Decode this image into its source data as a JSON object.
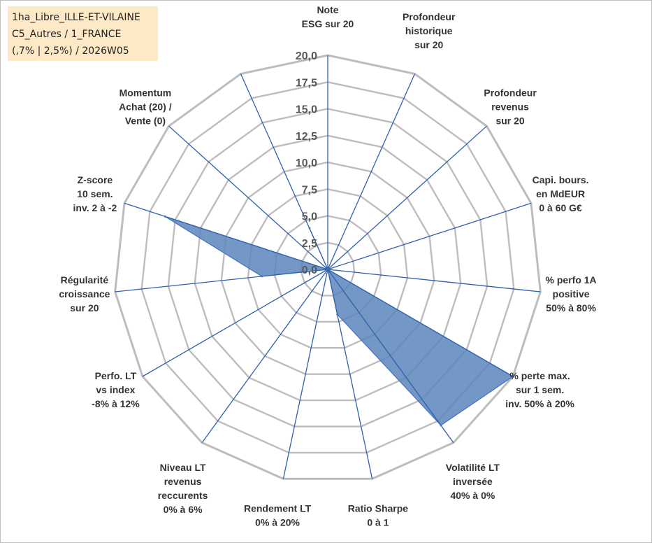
{
  "info": {
    "line1": "1ha_Libre_ILLE-ET-VILAINE",
    "line2": "C5_Autres / 1_FRANCE",
    "line3": "(,7% | 2,5%) / 2026W05"
  },
  "chart_data": {
    "type": "radar",
    "title": "",
    "rlim": [
      0,
      20
    ],
    "ticks": [
      "0,0",
      "2,5",
      "5,0",
      "7,5",
      "10,0",
      "12,5",
      "15,0",
      "17,5",
      "20,0"
    ],
    "tick_values": [
      0,
      2.5,
      5,
      7.5,
      10,
      12.5,
      15,
      17.5,
      20
    ],
    "colors": {
      "fill": "#5b86bb",
      "stroke": "#4472c4",
      "grid": "#bdbdbd",
      "spoke": "#2f5fae"
    },
    "axes": [
      {
        "label": [
          "Note",
          "ESG sur 20"
        ],
        "value": 0
      },
      {
        "label": [
          "Profondeur",
          "historique",
          "sur 20"
        ],
        "value": 0
      },
      {
        "label": [
          "Profondeur",
          "revenus",
          "sur 20"
        ],
        "value": 0
      },
      {
        "label": [
          "Capi. bours.",
          "en MdEUR",
          "0 à 60 G€"
        ],
        "value": 0
      },
      {
        "label": [
          "% perfo 1A",
          "positive",
          "50% à 80%"
        ],
        "value": 0
      },
      {
        "label": [
          "% perte max.",
          "sur 1 sem.",
          "inv. 50% à 20%"
        ],
        "value": 20
      },
      {
        "label": [
          "Volatilité LT",
          "inversée",
          "40% à 0%"
        ],
        "value": 18
      },
      {
        "label": [
          "Ratio Sharpe",
          "0 à 1"
        ],
        "value": 4.3
      },
      {
        "label": [
          "Rendement LT",
          "0% à 20%"
        ],
        "value": 0
      },
      {
        "label": [
          "Niveau LT",
          "revenus",
          "reccurents",
          "0% à 6%"
        ],
        "value": 0
      },
      {
        "label": [
          "Perfo. LT",
          "vs index",
          "-8% à 12%"
        ],
        "value": 0
      },
      {
        "label": [
          "Régularité",
          "croissance",
          "sur 20"
        ],
        "value": 6.2
      },
      {
        "label": [
          "Z-score",
          "10 sem.",
          "inv. 2 à -2"
        ],
        "value": 16
      },
      {
        "label": [
          "Momentum",
          "Achat (20) /",
          "Vente (0)"
        ],
        "value": 0
      },
      {
        "label": [
          ""
        ],
        "value": 4.2
      }
    ]
  }
}
